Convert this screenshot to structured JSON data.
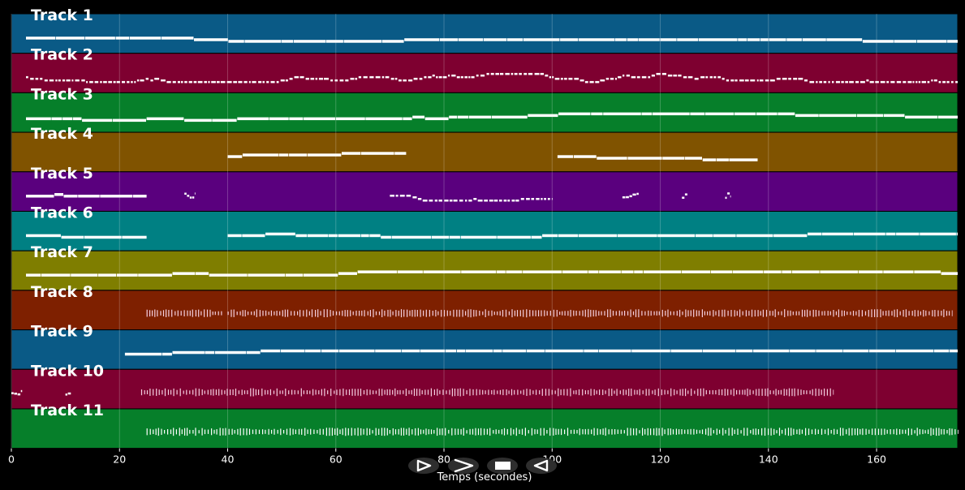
{
  "colors": {
    "background": "#000000",
    "tracks": [
      "#0a5a86",
      "#7e0030",
      "#067f2a",
      "#805300",
      "#5a007e",
      "#008083",
      "#7f7e00",
      "#7e2000",
      "#0a5a86",
      "#7e0030",
      "#067f2a"
    ]
  },
  "chart_data": {
    "type": "piano-roll",
    "xlabel": "Temps (secondes)",
    "xlim": [
      0,
      175
    ],
    "x_ticks": [
      0,
      20,
      40,
      60,
      80,
      100,
      120,
      140,
      160
    ],
    "x_tick_labels": [
      "0",
      "20",
      "40",
      "60",
      "80",
      "100",
      "120",
      "140",
      "160"
    ],
    "grid": true,
    "tracks": [
      {
        "label": "Track 1",
        "activity": [
          [
            2.7,
            175,
            "sustained"
          ]
        ]
      },
      {
        "label": "Track 2",
        "activity": [
          [
            2.7,
            175,
            "dense"
          ]
        ]
      },
      {
        "label": "Track 3",
        "activity": [
          [
            2.7,
            175,
            "sustained"
          ]
        ]
      },
      {
        "label": "Track 4",
        "activity": [
          [
            40,
            73,
            "sustained"
          ],
          [
            101,
            138,
            "sustained"
          ]
        ]
      },
      {
        "label": "Track 5",
        "activity": [
          [
            2.7,
            25,
            "sustained"
          ],
          [
            32,
            34,
            "short"
          ],
          [
            70,
            100,
            "dense"
          ],
          [
            113,
            116,
            "short"
          ],
          [
            124,
            125,
            "short"
          ],
          [
            132,
            133,
            "short"
          ]
        ]
      },
      {
        "label": "Track 6",
        "activity": [
          [
            2.7,
            25,
            "sustained"
          ],
          [
            40,
            175,
            "sustained"
          ]
        ]
      },
      {
        "label": "Track 7",
        "activity": [
          [
            2.7,
            175,
            "sustained"
          ]
        ]
      },
      {
        "label": "Track 8",
        "activity": [
          [
            25,
            39,
            "percussive"
          ],
          [
            40,
            174,
            "percussive"
          ]
        ]
      },
      {
        "label": "Track 9",
        "activity": [
          [
            21,
            175,
            "sustained"
          ]
        ]
      },
      {
        "label": "Track 10",
        "activity": [
          [
            0,
            2,
            "short"
          ],
          [
            10,
            11,
            "short"
          ],
          [
            24,
            152,
            "percussive"
          ]
        ]
      },
      {
        "label": "Track 11",
        "activity": [
          [
            25,
            175,
            "percussive"
          ]
        ]
      }
    ]
  },
  "controls": {
    "icons": [
      "play-outline-icon",
      "fast-forward-icon",
      "stop-icon",
      "rewind-icon"
    ]
  }
}
